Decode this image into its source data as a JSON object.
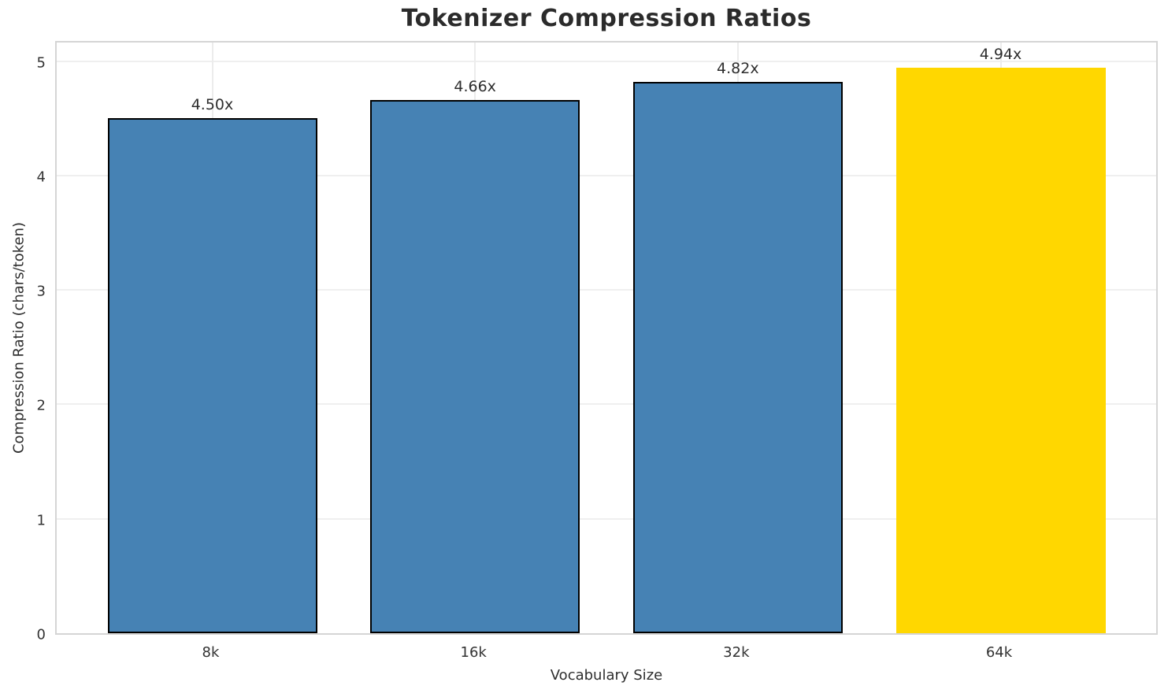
{
  "chart_data": {
    "type": "bar",
    "title": "Tokenizer Compression Ratios",
    "xlabel": "Vocabulary Size",
    "ylabel": "Compression Ratio (chars/token)",
    "categories": [
      "8k",
      "16k",
      "32k",
      "64k"
    ],
    "values": [
      4.5,
      4.66,
      4.82,
      4.94
    ],
    "bar_labels": [
      "4.50x",
      "4.66x",
      "4.82x",
      "4.94x"
    ],
    "yticks": [
      0,
      1,
      2,
      3,
      4,
      5
    ],
    "ylim": [
      0,
      5.19
    ],
    "grid": true,
    "legend_position": "none",
    "colors": {
      "bar": "#4682B4",
      "highlight_bar": "#FFD700",
      "bar_edge": "#000000",
      "grid": "#EFEFEF",
      "spine": "#D5D5D5",
      "title_text": "#2B2B2B",
      "tick_text": "#333333"
    },
    "bar_colors": [
      "#4682B4",
      "#4682B4",
      "#4682B4",
      "#FFD700"
    ],
    "bar_has_edge": [
      true,
      true,
      true,
      false
    ]
  }
}
